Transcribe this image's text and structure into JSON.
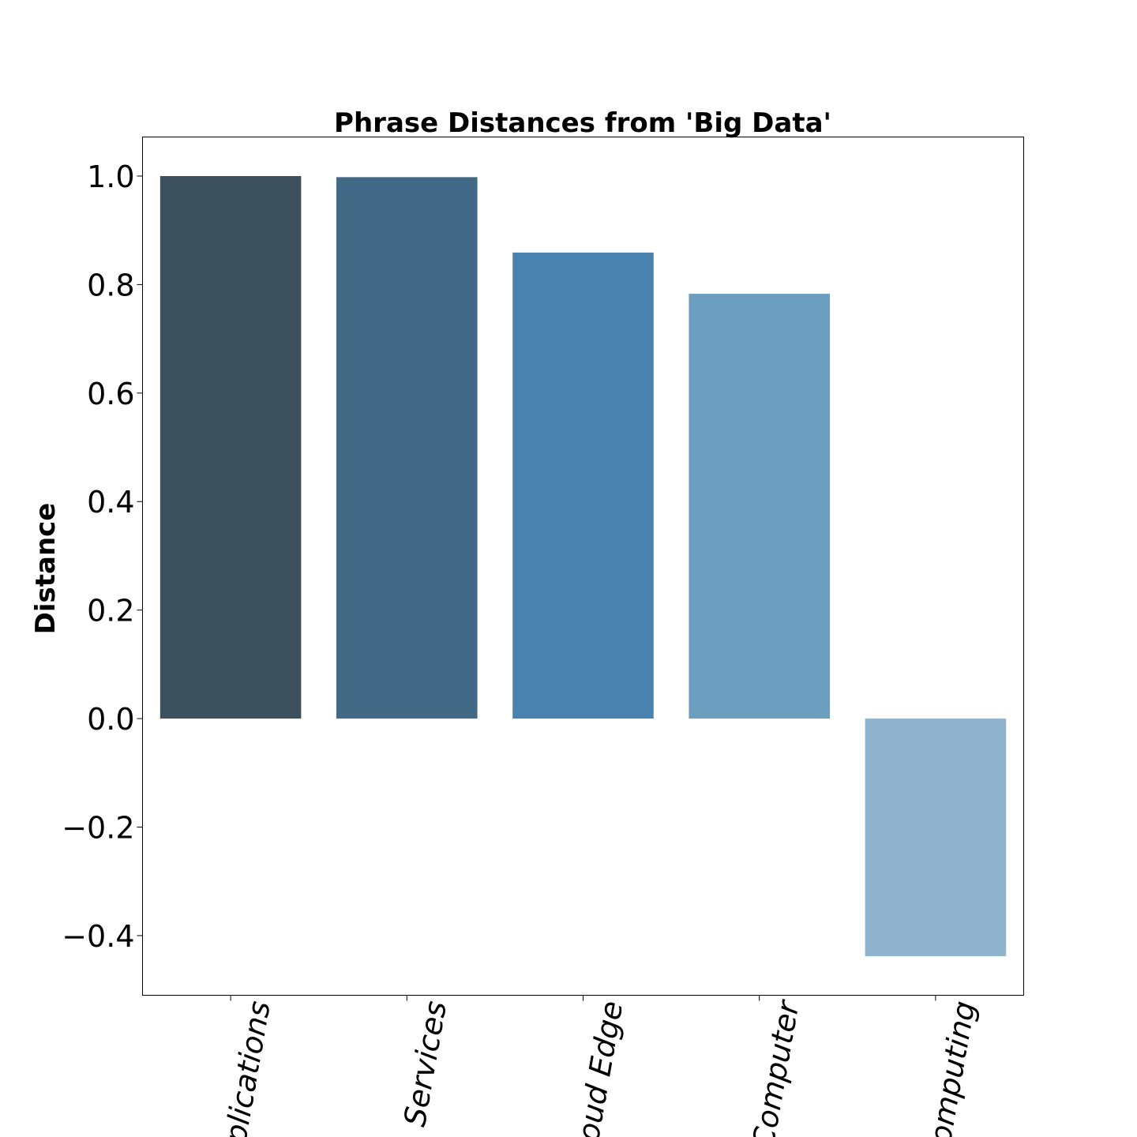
{
  "chart_data": {
    "type": "bar",
    "title": "Phrase Distances from 'Big Data'",
    "xlabel": "",
    "ylabel": "Distance",
    "categories": [
      "Applications",
      "Services",
      "Cloud Edge",
      "Computer",
      "Computing"
    ],
    "values": [
      1.0,
      0.998,
      0.859,
      0.783,
      -0.438
    ],
    "colors": [
      "#3b4f5d",
      "#426985",
      "#4982ae",
      "#6b9dbe",
      "#91b4ce"
    ],
    "ylim": [
      -0.51,
      1.072
    ],
    "yticks": [
      -0.4,
      -0.2,
      0.0,
      0.2,
      0.4,
      0.6,
      0.8,
      1.0
    ],
    "ytick_labels": [
      "−0.4",
      "−0.2",
      "0.0",
      "0.2",
      "0.4",
      "0.6",
      "0.8",
      "1.0"
    ],
    "grid": false,
    "legend": "none"
  }
}
